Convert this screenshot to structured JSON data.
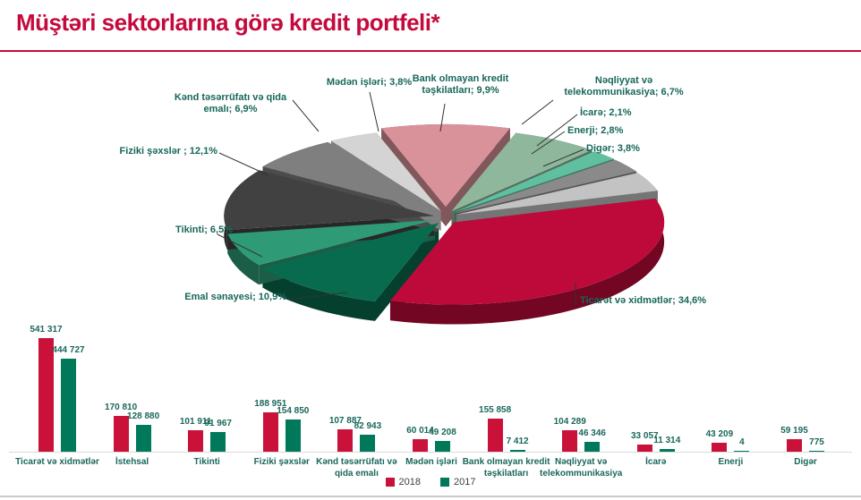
{
  "title": "Müştəri sektorlarına görə kredit portfeli*",
  "colors": {
    "accent": "#C40A3C",
    "label_teal": "#17675A",
    "bar_2018": "#C9113A",
    "bar_2017": "#00795B",
    "axis_line": "#D9D9D9"
  },
  "pie_labels": [
    "Bank olmayan kredit\ntəşkilatları; 9,9%",
    "Nəqliyyat və\ntelekommunikasiya; 6,7%",
    "İcarə; 2,1%",
    "Enerji; 2,8%",
    "Digər; 3,8%",
    "Ticarət və xidmətlər; 34,6%",
    "Emal sənayesi; 10,9%",
    "Tikinti; 6,5%",
    "Fiziki şəxslər ; 12,1%",
    "Kənd təsərrüfatı və qida\nemalı; 6,9%",
    "Mədən işləri; 3,8%"
  ],
  "bar_categories": [
    "Ticarət və xidmətlər",
    "İstehsal",
    "Tikinti",
    "Fiziki şəxslər",
    "Kənd təsərrüfatı və\nqida emalı",
    "Mədən işləri",
    "Bank olmayan kredit\ntəşkilatları",
    "Nəqliyyat və\ntelekommunikasiya",
    "İcarə",
    "Enerji",
    "Digər"
  ],
  "legend": [
    {
      "label": "2018",
      "color": "#C9113A"
    },
    {
      "label": "2017",
      "color": "#00795B"
    }
  ],
  "chart_data": [
    {
      "type": "pie",
      "style": "3d-exploded",
      "title": "Müştəri sektorlarına görə kredit portfeli*",
      "labels": [
        "Bank olmayan kredit təşkilatları",
        "Nəqliyyat və telekommunikasiya",
        "İcarə",
        "Enerji",
        "Digər",
        "Ticarət və xidmətlər",
        "Emal sənayesi",
        "Tikinti",
        "Fiziki şəxslər",
        "Kənd təsərrüfatı və qida emalı",
        "Mədən işləri"
      ],
      "values": [
        9.9,
        6.7,
        2.1,
        2.8,
        3.8,
        34.6,
        10.9,
        6.5,
        12.1,
        6.9,
        3.8
      ],
      "unit": "%",
      "colors": [
        "#D9919A",
        "#8FB79C",
        "#5FBF9E",
        "#8A8A8A",
        "#C3C3C3",
        "#BE0A3A",
        "#096B4D",
        "#2E9B76",
        "#414141",
        "#7F7F7F",
        "#D4D4D4"
      ]
    },
    {
      "type": "bar",
      "categories": [
        "Ticarət və xidmətlər",
        "İstehsal",
        "Tikinti",
        "Fiziki şəxslər",
        "Kənd təsərrüfatı və qida emalı",
        "Mədən işləri",
        "Bank olmayan kredit təşkilatları",
        "Nəqliyyat və telekommunikasiya",
        "İcarə",
        "Enerji",
        "Digər"
      ],
      "series": [
        {
          "name": "2018",
          "color": "#C9113A",
          "values": [
            541317,
            170810,
            101911,
            188951,
            107887,
            60014,
            155858,
            104289,
            33057,
            43209,
            59195
          ]
        },
        {
          "name": "2017",
          "color": "#00795B",
          "values": [
            444727,
            128880,
            91967,
            154850,
            82943,
            49208,
            7412,
            46346,
            11314,
            4,
            775
          ]
        }
      ],
      "legend_position": "bottom",
      "data_labels": true,
      "gridlines": false
    }
  ]
}
